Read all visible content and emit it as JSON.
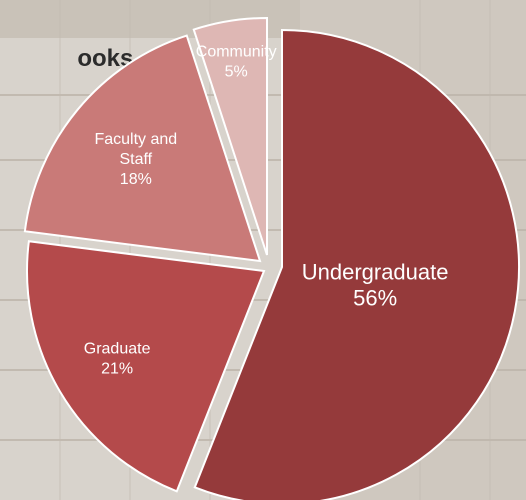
{
  "question_text": "ooks,\n the\ng?",
  "colors": {
    "background": "#d8d3cc",
    "shelf": "#b9b1a6"
  },
  "chart_data": {
    "type": "pie",
    "title": "",
    "slices": [
      {
        "label_lines": [
          "Undergraduate"
        ],
        "value_text": "56%",
        "value": 56,
        "color": "#953a3b",
        "text_color": "#ffffff"
      },
      {
        "label_lines": [
          "Graduate"
        ],
        "value_text": "21%",
        "value": 21,
        "color": "#b44a4b",
        "text_color": "#ffffff"
      },
      {
        "label_lines": [
          "Faculty and",
          "Staff"
        ],
        "value_text": "18%",
        "value": 18,
        "color": "#c97a78",
        "text_color": "#ffffff"
      },
      {
        "label_lines": [
          "Community"
        ],
        "value_text": "5%",
        "value": 5,
        "color": "#deb7b4",
        "text_color": "#5a1f22"
      }
    ],
    "legend": "none",
    "exploded": true
  }
}
